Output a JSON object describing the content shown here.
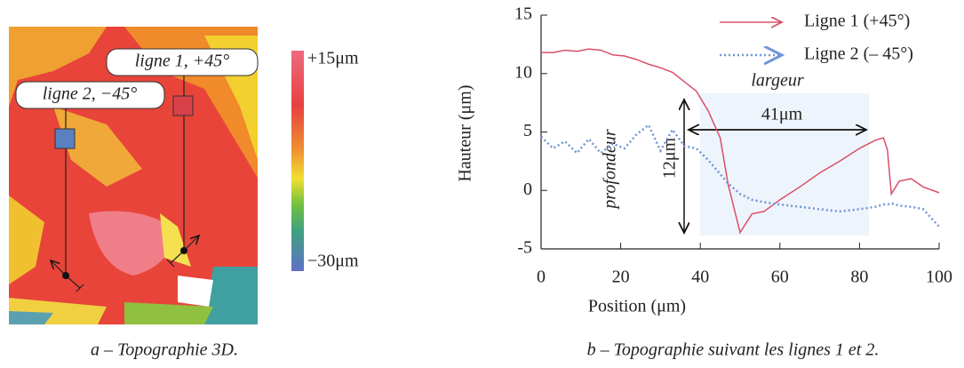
{
  "chart_data": [
    {
      "type": "image",
      "caption": "a – Topographie 3D.",
      "annotations": [
        "ligne 1, +45°",
        "ligne 2, −45°"
      ],
      "clim": [
        -30,
        15
      ],
      "colorbar_ticks": [
        {
          "value": 15,
          "label": "+15μm"
        },
        {
          "value": -30,
          "label": "−30μm"
        }
      ]
    },
    {
      "type": "line",
      "caption": "b – Topographie suivant les lignes 1 et 2.",
      "xlabel": "Position (μm)",
      "ylabel": "Hauteur (μm)",
      "x": [
        0,
        3,
        6,
        9,
        12,
        15,
        18,
        21,
        24,
        27,
        30,
        33,
        36,
        39,
        42,
        45,
        47,
        50,
        53,
        56,
        60,
        65,
        70,
        75,
        80,
        84,
        86,
        87,
        88,
        90,
        93,
        96,
        100
      ],
      "series": [
        {
          "name": "Ligne 1 (+45°)",
          "color": "#d9506a",
          "style": "solid",
          "values": [
            11.8,
            11.8,
            12,
            11.9,
            12.1,
            12,
            11.6,
            11.5,
            11.2,
            10.8,
            10.5,
            10.1,
            9.3,
            8.5,
            6.8,
            4.5,
            0.5,
            -3.6,
            -2,
            -1.8,
            -0.8,
            0.3,
            1.5,
            2.5,
            3.6,
            4.3,
            4.5,
            3.5,
            -0.3,
            0.8,
            1,
            0.3,
            -0.2
          ]
        },
        {
          "name": "Ligne 2 (– 45°)",
          "color": "#6f95d6",
          "style": "dotted",
          "values": [
            4.6,
            3.6,
            4.2,
            3.2,
            4.4,
            3.2,
            4,
            3.6,
            4.8,
            5.6,
            3.4,
            5.2,
            3.8,
            3.6,
            2.6,
            1.4,
            0.6,
            -0.3,
            -0.8,
            -1,
            -1.2,
            -1.4,
            -1.6,
            -1.8,
            -1.6,
            -1.4,
            -1.2,
            -1.2,
            -1.1,
            -1.3,
            -1.4,
            -1.6,
            -3.1
          ]
        }
      ],
      "xlim": [
        0,
        100
      ],
      "xticks": [
        0,
        20,
        40,
        60,
        80,
        100
      ],
      "ylim": [
        -5,
        15
      ],
      "yticks": [
        -5,
        0,
        5,
        10,
        15
      ],
      "annotations": [
        "largeur",
        "41μm",
        "profondeur",
        "12μm"
      ],
      "legend": "upper right"
    }
  ]
}
